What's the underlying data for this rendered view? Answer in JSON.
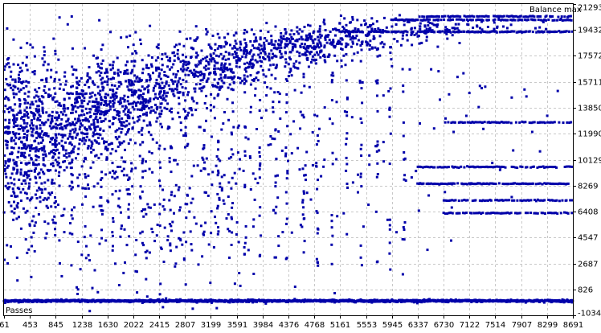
{
  "chart_data": {
    "type": "scatter",
    "title": "",
    "top_label": "Balance max",
    "bottom_label": "Passes",
    "xlabel": "",
    "ylabel": "",
    "x_ticks": [
      61,
      453,
      845,
      1238,
      1630,
      2022,
      2415,
      2807,
      3199,
      3591,
      3984,
      4376,
      4768,
      5161,
      5553,
      5945,
      6337,
      6730,
      7122,
      7514,
      7907,
      8299,
      8691
    ],
    "y_ticks": [
      21293,
      19432,
      17572,
      15711,
      13850,
      11990,
      10129,
      8269,
      6408,
      4547,
      2687,
      826,
      -1034
    ],
    "xlim": [
      61,
      8691
    ],
    "ylim": [
      -1034,
      21293
    ],
    "grid": true,
    "colors": {
      "points": "#0000aa",
      "grid": "#c8c8c8",
      "axis": "#000000"
    },
    "series": [
      {
        "name": "",
        "clusters": [
          {
            "x": 300,
            "y": 11600,
            "sx": 380,
            "sy": 3200,
            "n": 620
          },
          {
            "x": 1300,
            "y": 13400,
            "sx": 480,
            "sy": 1700,
            "n": 460
          },
          {
            "x": 2300,
            "y": 15200,
            "sx": 520,
            "sy": 1300,
            "n": 340
          },
          {
            "x": 3350,
            "y": 16900,
            "sx": 520,
            "sy": 1000,
            "n": 300
          },
          {
            "x": 4400,
            "y": 18100,
            "sx": 560,
            "sy": 700,
            "n": 240
          },
          {
            "x": 5400,
            "y": 18800,
            "sx": 560,
            "sy": 550,
            "n": 160
          },
          {
            "x": 6400,
            "y": 19700,
            "sx": 800,
            "sy": 350,
            "n": 110
          },
          {
            "x": 1700,
            "y": 7000,
            "sx": 1200,
            "sy": 3800,
            "n": 340
          },
          {
            "x": 3800,
            "y": 10500,
            "sx": 1400,
            "sy": 3500,
            "n": 180
          },
          {
            "x": 6500,
            "y": 12000,
            "sx": 1600,
            "sy": 4500,
            "n": 70
          }
        ],
        "bands": [
          {
            "y": 20400,
            "x_from": 6337,
            "x_to": 8691
          },
          {
            "y": 20150,
            "x_from": 5945,
            "x_to": 8691
          },
          {
            "y": 19300,
            "x_from": 5161,
            "x_to": 8691
          },
          {
            "y": 12800,
            "x_from": 6730,
            "x_to": 8691
          },
          {
            "y": 9600,
            "x_from": 6337,
            "x_to": 8691
          },
          {
            "y": 8400,
            "x_from": 6337,
            "x_to": 8691
          },
          {
            "y": 7200,
            "x_from": 6730,
            "x_to": 8691
          },
          {
            "y": 6300,
            "x_from": 6730,
            "x_to": 8691
          }
        ],
        "baseline": {
          "y": 0,
          "x_from": 61,
          "x_to": 8691
        }
      }
    ]
  }
}
